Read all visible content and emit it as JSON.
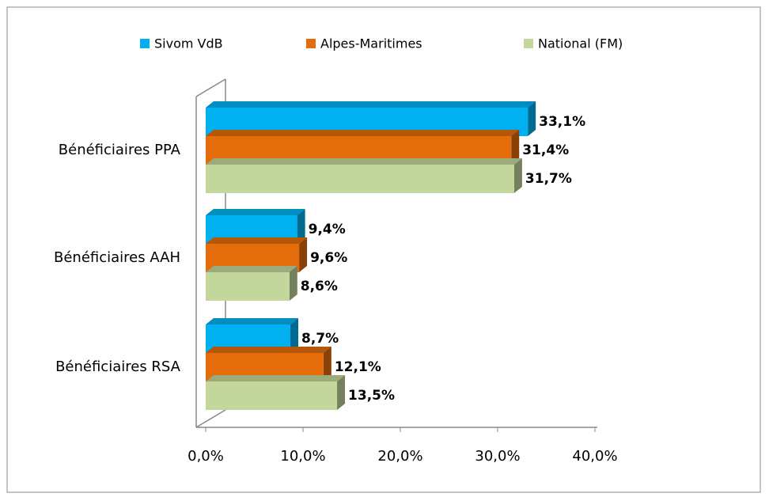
{
  "chart_data": {
    "type": "bar",
    "orientation": "horizontal",
    "categories": [
      "Bénéficiaires PPA",
      "Bénéficiaires AAH",
      "Bénéficiaires RSA"
    ],
    "series": [
      {
        "name": "Sivom VdB",
        "color": "#00b0f0",
        "values": [
          33.1,
          9.4,
          8.7
        ],
        "value_labels": [
          "33,1%",
          "9,4%",
          "8,7%"
        ]
      },
      {
        "name": "Alpes-Maritimes",
        "color": "#e46c0a",
        "values": [
          31.4,
          9.6,
          12.1
        ],
        "value_labels": [
          "31,4%",
          "9,6%",
          "12,1%"
        ]
      },
      {
        "name": "National (FM)",
        "color": "#c3d69b",
        "values": [
          31.7,
          8.6,
          13.5
        ],
        "value_labels": [
          "31,7%",
          "8,6%",
          "13,5%"
        ]
      }
    ],
    "xlim": [
      0,
      40
    ],
    "xticks": [
      {
        "value": 0,
        "label": "0,0%"
      },
      {
        "value": 10,
        "label": "10,0%"
      },
      {
        "value": 20,
        "label": "20,0%"
      },
      {
        "value": 30,
        "label": "30,0%"
      },
      {
        "value": 40,
        "label": "40,0%"
      }
    ],
    "legend": "top"
  }
}
